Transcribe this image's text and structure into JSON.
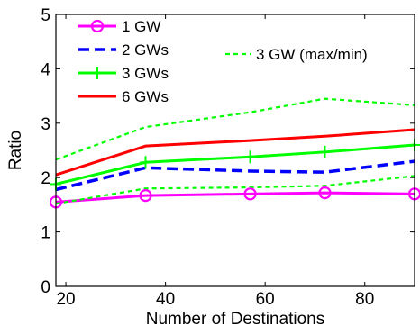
{
  "chart_data": {
    "type": "line",
    "title": "",
    "xlabel": "Number of Destinations",
    "ylabel": "Ratio",
    "xlim": [
      18,
      90
    ],
    "ylim": [
      0,
      5
    ],
    "xticks": [
      20,
      40,
      60,
      80
    ],
    "yticks": [
      0,
      1,
      2,
      3,
      4,
      5
    ],
    "grid": false,
    "legend_position": "top-left",
    "series": [
      {
        "name": "1 GW",
        "color": "#ff00ff",
        "style": "solid",
        "marker": "circle",
        "x": [
          18,
          36,
          57,
          72,
          90
        ],
        "y": [
          1.55,
          1.67,
          1.7,
          1.72,
          1.7
        ]
      },
      {
        "name": "2 GWs",
        "color": "#0000ff",
        "style": "dashed",
        "marker": "none",
        "x": [
          18,
          36,
          57,
          72,
          90
        ],
        "y": [
          1.78,
          2.18,
          2.12,
          2.1,
          2.3
        ]
      },
      {
        "name": "3 GWs",
        "color": "#00ff00",
        "style": "solid",
        "marker": "plus",
        "x": [
          18,
          36,
          57,
          72,
          90
        ],
        "y": [
          1.88,
          2.28,
          2.38,
          2.47,
          2.6
        ]
      },
      {
        "name": "6 GWs",
        "color": "#ff0000",
        "style": "solid",
        "marker": "none",
        "x": [
          18,
          36,
          57,
          72,
          90
        ],
        "y": [
          2.05,
          2.58,
          2.68,
          2.76,
          2.88
        ]
      },
      {
        "name": "3 GW (max/min)",
        "color": "#00ff00",
        "style": "dotted",
        "marker": "none",
        "role": "max",
        "x": [
          18,
          36,
          57,
          72,
          90
        ],
        "y": [
          2.33,
          2.93,
          3.2,
          3.45,
          3.33
        ]
      },
      {
        "name": "",
        "color": "#00ff00",
        "style": "dotted",
        "marker": "none",
        "role": "min",
        "x": [
          18,
          36,
          57,
          72,
          90
        ],
        "y": [
          1.52,
          1.8,
          1.82,
          1.85,
          2.03
        ]
      }
    ]
  }
}
